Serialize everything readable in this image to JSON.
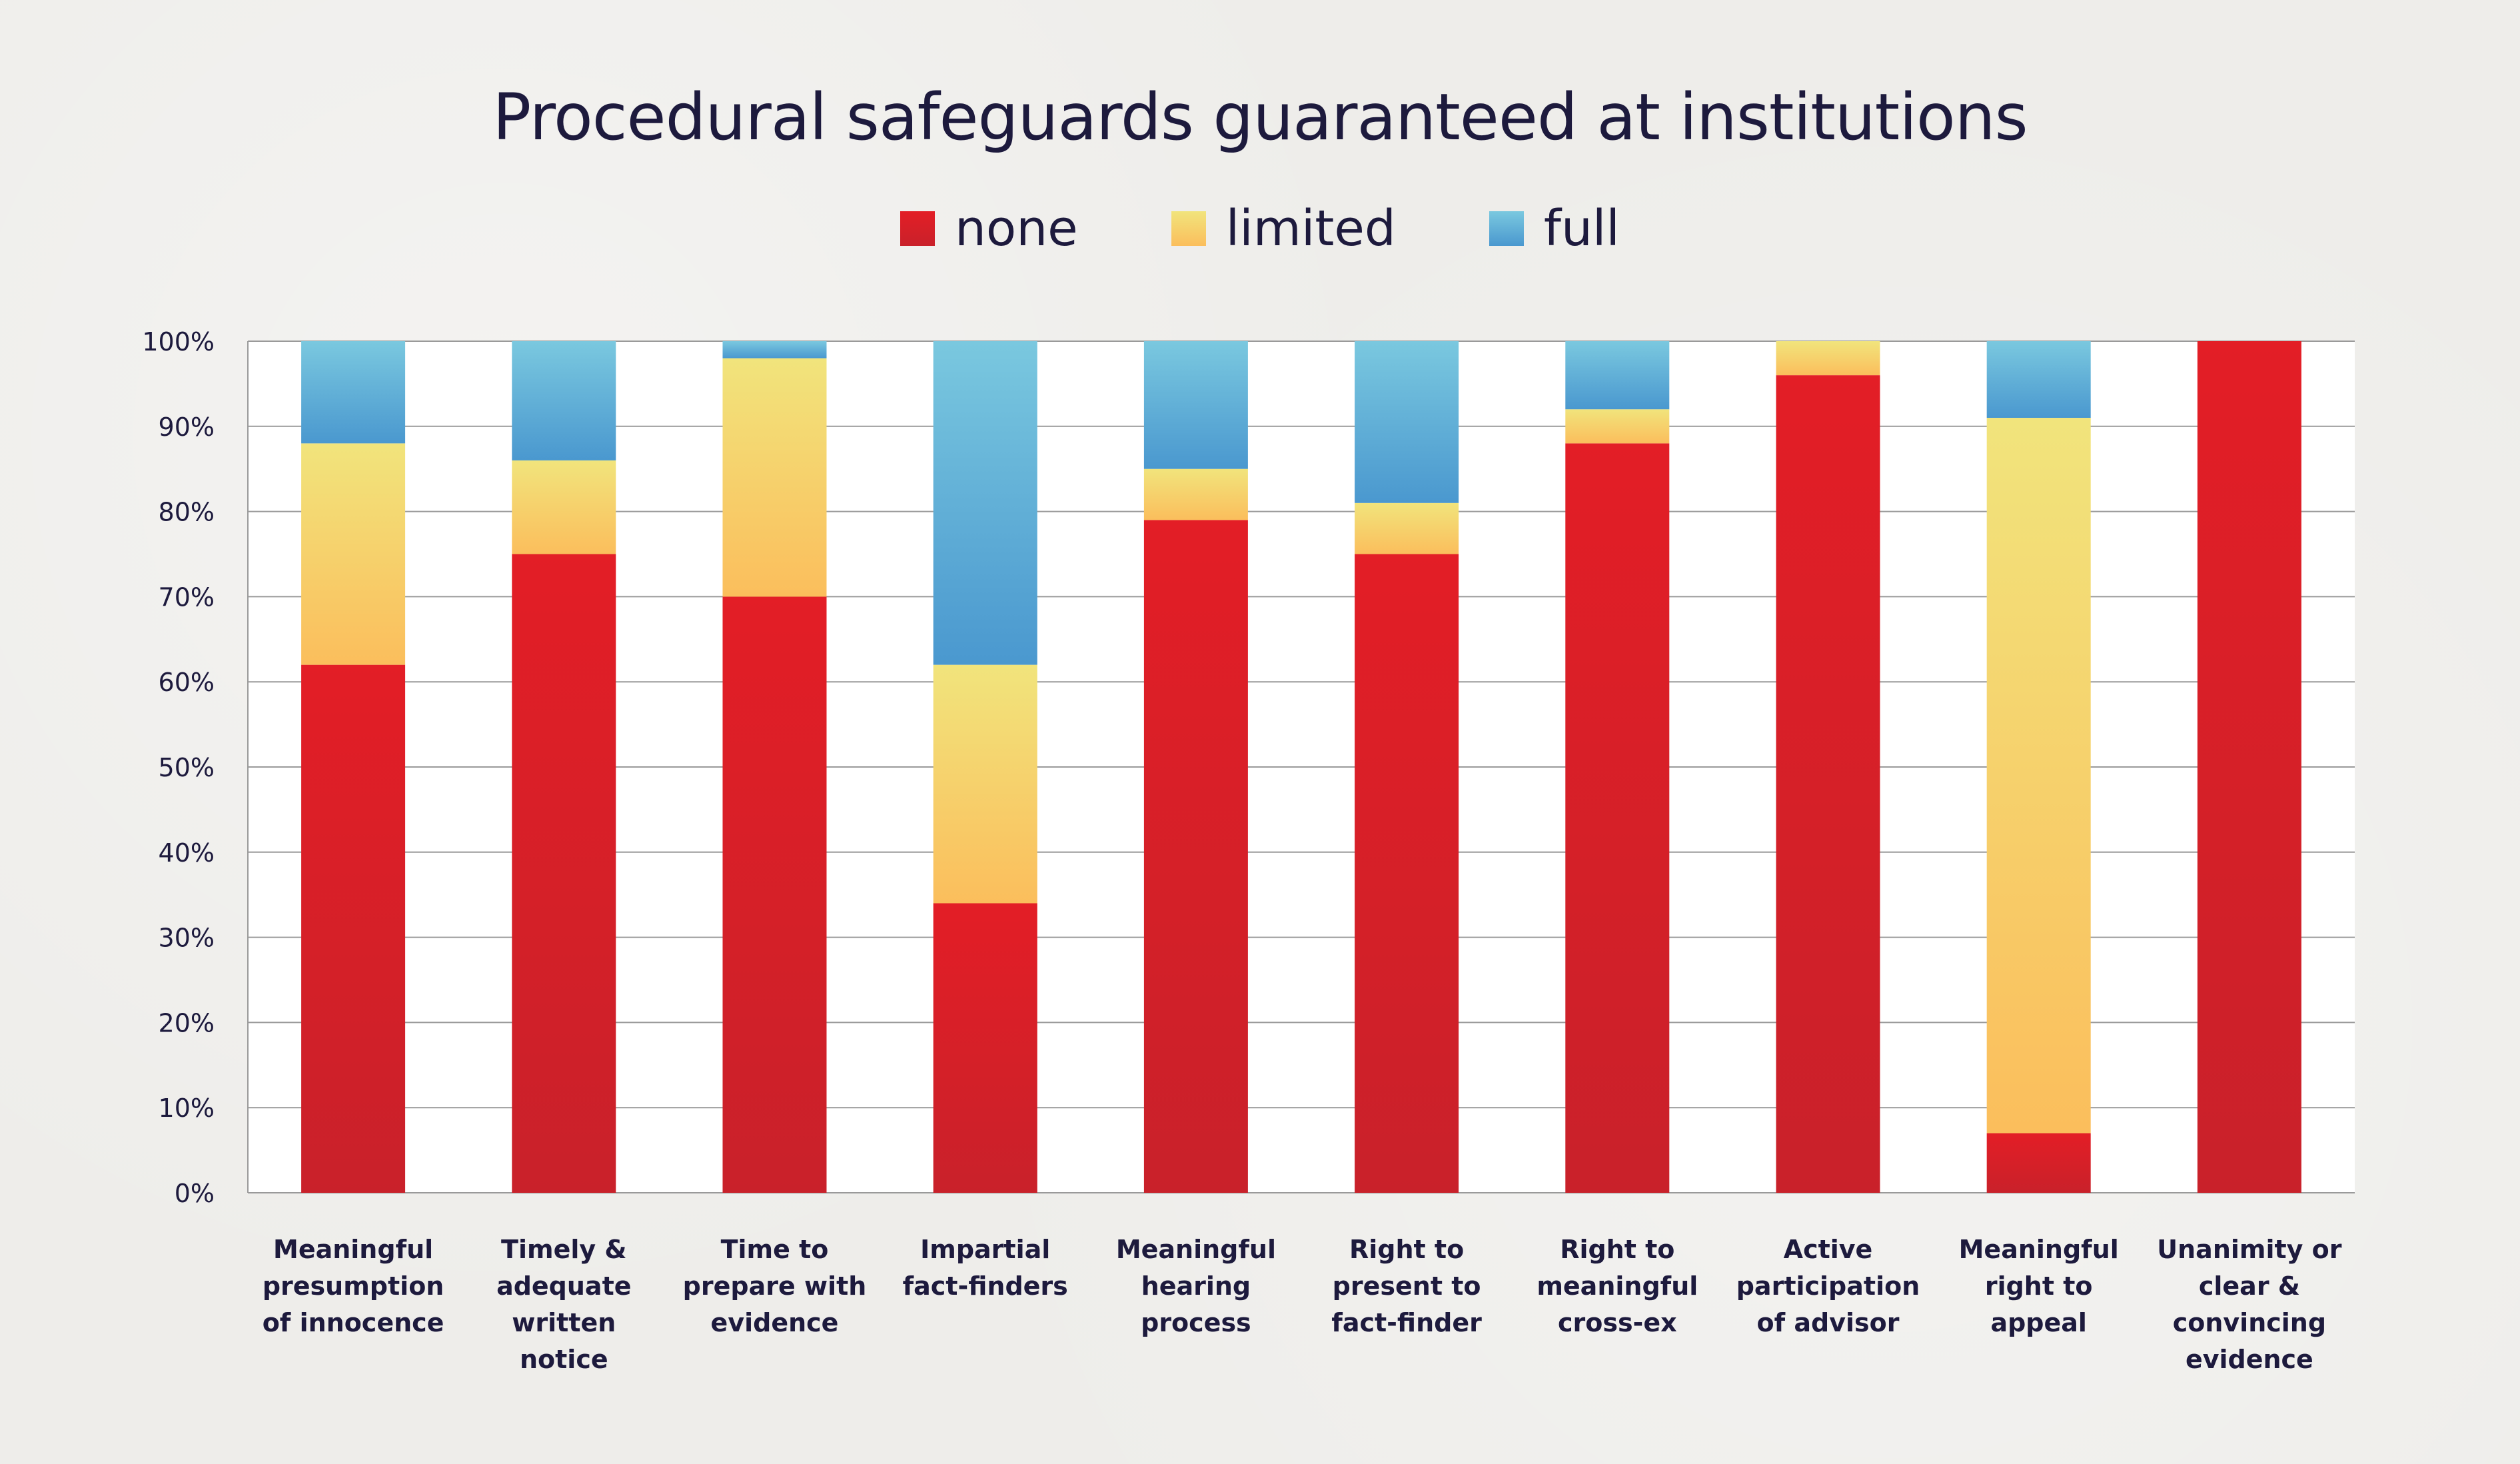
{
  "chart_data": {
    "type": "bar",
    "stacked": true,
    "title": "Procedural safeguards guaranteed at institutions",
    "legend_position": "top-center",
    "grid": true,
    "ylim": [
      0,
      100
    ],
    "yticks": [
      "0%",
      "10%",
      "20%",
      "30%",
      "40%",
      "50%",
      "60%",
      "70%",
      "80%",
      "90%",
      "100%"
    ],
    "categories": [
      [
        "Meaningful",
        "presumption",
        "of innocence"
      ],
      [
        "Timely &",
        "adequate",
        "written",
        "notice"
      ],
      [
        "Time to",
        "prepare with",
        "evidence"
      ],
      [
        "Impartial",
        "fact-finders"
      ],
      [
        "Meaningful",
        "hearing",
        "process"
      ],
      [
        "Right to",
        "present to",
        "fact-finder"
      ],
      [
        "Right to",
        "meaningful",
        "cross-ex"
      ],
      [
        "Active",
        "participation",
        "of advisor"
      ],
      [
        "Meaningful",
        "right to",
        "appeal"
      ],
      [
        "Unanimity or",
        "clear &",
        "convincing",
        "evidence"
      ]
    ],
    "series": [
      {
        "name": "none",
        "colors": [
          "#e31e26",
          "#c9212a"
        ],
        "values": [
          62,
          75,
          70,
          34,
          79,
          75,
          88,
          96,
          7,
          100
        ]
      },
      {
        "name": "limited",
        "colors": [
          "#f1e47c",
          "#fbbe5c"
        ],
        "values": [
          26,
          11,
          28,
          28,
          6,
          6,
          4,
          4,
          84,
          0
        ]
      },
      {
        "name": "full",
        "colors": [
          "#7ac8df",
          "#4a98cf"
        ],
        "values": [
          12,
          14,
          2,
          38,
          15,
          19,
          8,
          0,
          9,
          0
        ]
      }
    ]
  }
}
